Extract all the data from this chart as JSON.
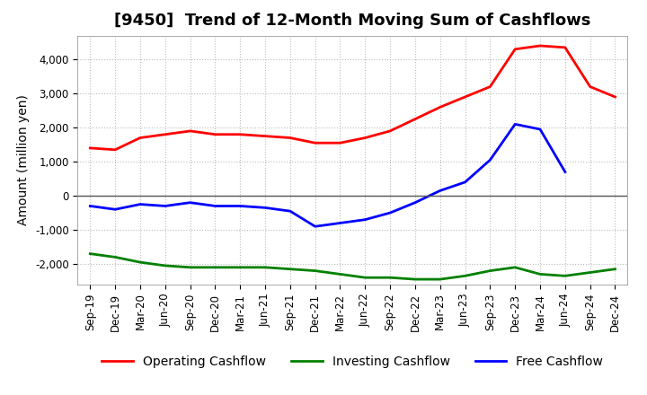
{
  "title": "[9450]  Trend of 12-Month Moving Sum of Cashflows",
  "ylabel": "Amount (million yen)",
  "x_labels": [
    "Sep-19",
    "Dec-19",
    "Mar-20",
    "Jun-20",
    "Sep-20",
    "Dec-20",
    "Mar-21",
    "Jun-21",
    "Sep-21",
    "Dec-21",
    "Mar-22",
    "Jun-22",
    "Sep-22",
    "Dec-22",
    "Mar-23",
    "Jun-23",
    "Sep-23",
    "Dec-23",
    "Mar-24",
    "Jun-24",
    "Sep-24",
    "Dec-24"
  ],
  "operating": [
    1400,
    1350,
    1700,
    1800,
    1900,
    1800,
    1800,
    1750,
    1700,
    1550,
    1550,
    1700,
    1900,
    2250,
    2600,
    2900,
    3200,
    4300,
    4400,
    4350,
    3200,
    2900
  ],
  "investing": [
    -1700,
    -1800,
    -1950,
    -2050,
    -2100,
    -2100,
    -2100,
    -2100,
    -2150,
    -2200,
    -2300,
    -2400,
    -2400,
    -2450,
    -2450,
    -2350,
    -2200,
    -2100,
    -2300,
    -2350,
    -2250,
    -2150
  ],
  "free": [
    -300,
    -400,
    -250,
    -300,
    -200,
    -300,
    -300,
    -350,
    -450,
    -900,
    -800,
    -700,
    -500,
    -200,
    150,
    400,
    1050,
    2100,
    1950,
    700,
    null,
    null
  ],
  "operating_color": "#FF0000",
  "investing_color": "#008000",
  "free_color": "#0000FF",
  "ylim": [
    -2600,
    4700
  ],
  "yticks": [
    -2000,
    -1000,
    0,
    1000,
    2000,
    3000,
    4000
  ],
  "grid_color": "#BBBBBB",
  "title_fontsize": 13,
  "label_fontsize": 10,
  "tick_fontsize": 8.5
}
